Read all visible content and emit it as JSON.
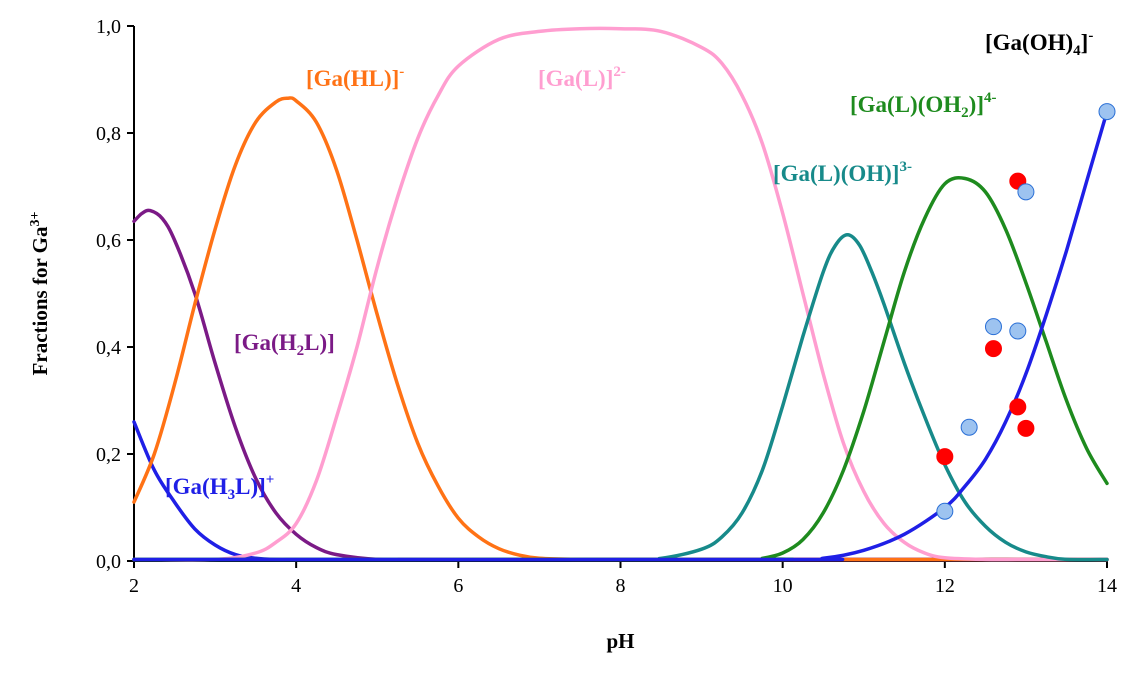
{
  "chart_data": {
    "type": "line",
    "title": "",
    "xlabel": "pH",
    "ylabel_parts": {
      "base": "Fractions for Ga",
      "sup": "3+"
    },
    "xlim": [
      2,
      14
    ],
    "ylim": [
      0,
      1.0
    ],
    "xticks": [
      "2",
      "4",
      "6",
      "8",
      "10",
      "12",
      "14"
    ],
    "yticks": [
      "0,0",
      "0,2",
      "0,4",
      "0,6",
      "0,8",
      "1,0"
    ],
    "grid": false,
    "series": [
      {
        "key": "h3l",
        "label_parts": [
          {
            "t": "[Ga(H"
          },
          {
            "t": "3",
            "s": "sub"
          },
          {
            "t": "L)]"
          },
          {
            "t": "+",
            "s": "sup"
          }
        ],
        "color": "#1f1fe6",
        "x": [
          2.0,
          2.25,
          2.5,
          2.75,
          3.0,
          3.25,
          3.5,
          3.75,
          4.0,
          4.5,
          5.0,
          6.0,
          14.0
        ],
        "y": [
          0.26,
          0.17,
          0.11,
          0.06,
          0.03,
          0.012,
          0.005,
          0.002,
          0.001,
          0.0,
          0.0,
          0.0,
          0.0
        ]
      },
      {
        "key": "h2l",
        "label_parts": [
          {
            "t": "[Ga(H"
          },
          {
            "t": "2",
            "s": "sub"
          },
          {
            "t": "L)]"
          }
        ],
        "color": "#7b1a86",
        "x": [
          2.0,
          2.1,
          2.2,
          2.35,
          2.5,
          2.75,
          3.0,
          3.25,
          3.5,
          3.75,
          4.0,
          4.25,
          4.5,
          5.0,
          5.5,
          6.0,
          14.0
        ],
        "y": [
          0.635,
          0.65,
          0.655,
          0.64,
          0.6,
          0.5,
          0.37,
          0.25,
          0.155,
          0.09,
          0.05,
          0.025,
          0.012,
          0.003,
          0.001,
          0.0,
          0.0
        ]
      },
      {
        "key": "hl",
        "label_parts": [
          {
            "t": "[Ga(HL)]"
          },
          {
            "t": "-",
            "s": "sup"
          }
        ],
        "color": "#ff7215",
        "x": [
          2.0,
          2.25,
          2.5,
          2.75,
          3.0,
          3.25,
          3.5,
          3.75,
          3.9,
          4.0,
          4.25,
          4.5,
          4.75,
          5.0,
          5.25,
          5.5,
          5.75,
          6.0,
          6.25,
          6.5,
          6.75,
          7.0,
          7.5,
          8.0,
          14.0
        ],
        "y": [
          0.11,
          0.2,
          0.33,
          0.48,
          0.62,
          0.74,
          0.82,
          0.858,
          0.865,
          0.86,
          0.82,
          0.73,
          0.6,
          0.46,
          0.33,
          0.22,
          0.14,
          0.08,
          0.045,
          0.023,
          0.011,
          0.005,
          0.001,
          0.0,
          0.0
        ]
      },
      {
        "key": "l",
        "label_parts": [
          {
            "t": "[Ga(L)]"
          },
          {
            "t": "2-",
            "s": "sup"
          }
        ],
        "color": "#ff9ed0",
        "x": [
          2.0,
          3.0,
          3.5,
          3.75,
          4.0,
          4.25,
          4.5,
          4.75,
          5.0,
          5.25,
          5.5,
          5.75,
          6.0,
          6.5,
          7.0,
          7.5,
          8.0,
          8.5,
          9.0,
          9.25,
          9.5,
          9.75,
          10.0,
          10.25,
          10.5,
          10.75,
          11.0,
          11.25,
          11.5,
          11.75,
          12.0,
          12.5,
          13.0,
          14.0
        ],
        "y": [
          0.0,
          0.002,
          0.015,
          0.035,
          0.07,
          0.15,
          0.27,
          0.4,
          0.55,
          0.68,
          0.79,
          0.87,
          0.925,
          0.975,
          0.99,
          0.995,
          0.995,
          0.99,
          0.96,
          0.93,
          0.87,
          0.78,
          0.65,
          0.5,
          0.35,
          0.22,
          0.13,
          0.07,
          0.035,
          0.015,
          0.006,
          0.001,
          0.0,
          0.0
        ]
      },
      {
        "key": "loh",
        "label_parts": [
          {
            "t": "[Ga(L)(OH)]"
          },
          {
            "t": "3-",
            "s": "sup"
          }
        ],
        "color": "#178a8a",
        "x": [
          2.0,
          8.0,
          8.5,
          9.0,
          9.25,
          9.5,
          9.75,
          10.0,
          10.25,
          10.5,
          10.65,
          10.8,
          10.95,
          11.1,
          11.25,
          11.5,
          11.75,
          12.0,
          12.25,
          12.5,
          12.75,
          13.0,
          13.25,
          13.5,
          14.0
        ],
        "y": [
          0.0,
          0.0,
          0.005,
          0.022,
          0.045,
          0.09,
          0.17,
          0.29,
          0.42,
          0.54,
          0.59,
          0.61,
          0.59,
          0.54,
          0.48,
          0.37,
          0.27,
          0.18,
          0.11,
          0.065,
          0.035,
          0.017,
          0.008,
          0.003,
          0.0
        ]
      },
      {
        "key": "loh2",
        "label_parts": [
          {
            "t": "[Ga(L)(OH"
          },
          {
            "t": "2",
            "s": "sub"
          },
          {
            "t": ")]"
          },
          {
            "t": "4-",
            "s": "sup"
          }
        ],
        "color": "#1e8b1e",
        "x": [
          2.0,
          9.5,
          9.75,
          10.0,
          10.25,
          10.5,
          10.75,
          11.0,
          11.25,
          11.5,
          11.75,
          12.0,
          12.25,
          12.5,
          12.75,
          13.0,
          13.25,
          13.5,
          13.75,
          14.0
        ],
        "y": [
          0.0,
          0.0,
          0.005,
          0.015,
          0.04,
          0.09,
          0.17,
          0.28,
          0.41,
          0.54,
          0.64,
          0.705,
          0.715,
          0.69,
          0.62,
          0.52,
          0.41,
          0.3,
          0.21,
          0.145
        ]
      },
      {
        "key": "oh4",
        "label_parts": [
          {
            "t": "[Ga(OH)"
          },
          {
            "t": "4",
            "s": "sub"
          },
          {
            "t": "]"
          },
          {
            "t": "-",
            "s": "sup"
          }
        ],
        "color": "#1f1fe6",
        "x": [
          2.0,
          10.0,
          10.5,
          11.0,
          11.5,
          12.0,
          12.25,
          12.5,
          12.75,
          13.0,
          13.25,
          13.5,
          13.75,
          14.0
        ],
        "y": [
          0.0,
          0.0,
          0.005,
          0.02,
          0.05,
          0.1,
          0.14,
          0.19,
          0.26,
          0.35,
          0.46,
          0.58,
          0.71,
          0.84
        ]
      }
    ],
    "scatter": [
      {
        "key": "exp_red",
        "color": "#ff0000",
        "stroke": "#ff0000",
        "points": [
          [
            12.0,
            0.195
          ],
          [
            12.6,
            0.397
          ],
          [
            12.9,
            0.71
          ],
          [
            12.9,
            0.288
          ],
          [
            13.0,
            0.248
          ]
        ]
      },
      {
        "key": "exp_blue",
        "color": "#9dc3f0",
        "stroke": "#2a6fd6",
        "points": [
          [
            12.0,
            0.093
          ],
          [
            12.3,
            0.25
          ],
          [
            12.6,
            0.438
          ],
          [
            12.9,
            0.43
          ],
          [
            13.0,
            0.69
          ],
          [
            14.0,
            0.84
          ]
        ]
      }
    ]
  }
}
